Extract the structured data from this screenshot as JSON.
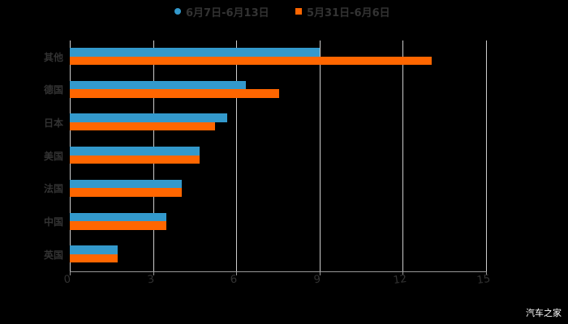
{
  "legend": [
    {
      "label": "6月7日-6月13日",
      "color": "#3399cc",
      "shape": "dot"
    },
    {
      "label": "5月31日-6月6日",
      "color": "#ff6600",
      "shape": "square"
    }
  ],
  "watermark": "汽车之家",
  "axis": {
    "ticks": [
      "0",
      "3",
      "6",
      "9",
      "12",
      "15"
    ]
  },
  "categories": [
    {
      "label": "其他"
    },
    {
      "label": "德国"
    },
    {
      "label": "日本"
    },
    {
      "label": "美国"
    },
    {
      "label": "法国"
    },
    {
      "label": "中国"
    },
    {
      "label": "英国"
    }
  ],
  "chart_data": {
    "type": "bar",
    "orientation": "horizontal",
    "title": "",
    "xlabel": "",
    "ylabel": "",
    "categories": [
      "其他",
      "德国",
      "日本",
      "美国",
      "法国",
      "中国",
      "英国"
    ],
    "series": [
      {
        "name": "6月7日-6月13日",
        "color": "#3399cc",
        "values": [
          9.0,
          6.35,
          5.67,
          4.68,
          4.03,
          3.48,
          1.72
        ]
      },
      {
        "name": "5月31日-6月6日",
        "color": "#ff6600",
        "values": [
          13.05,
          7.54,
          5.23,
          4.68,
          4.03,
          3.48,
          1.72
        ]
      }
    ],
    "xlim": [
      0,
      15
    ],
    "xticks": [
      0,
      3,
      6,
      9,
      12,
      15
    ],
    "grid": "vertical",
    "legend_position": "top"
  }
}
